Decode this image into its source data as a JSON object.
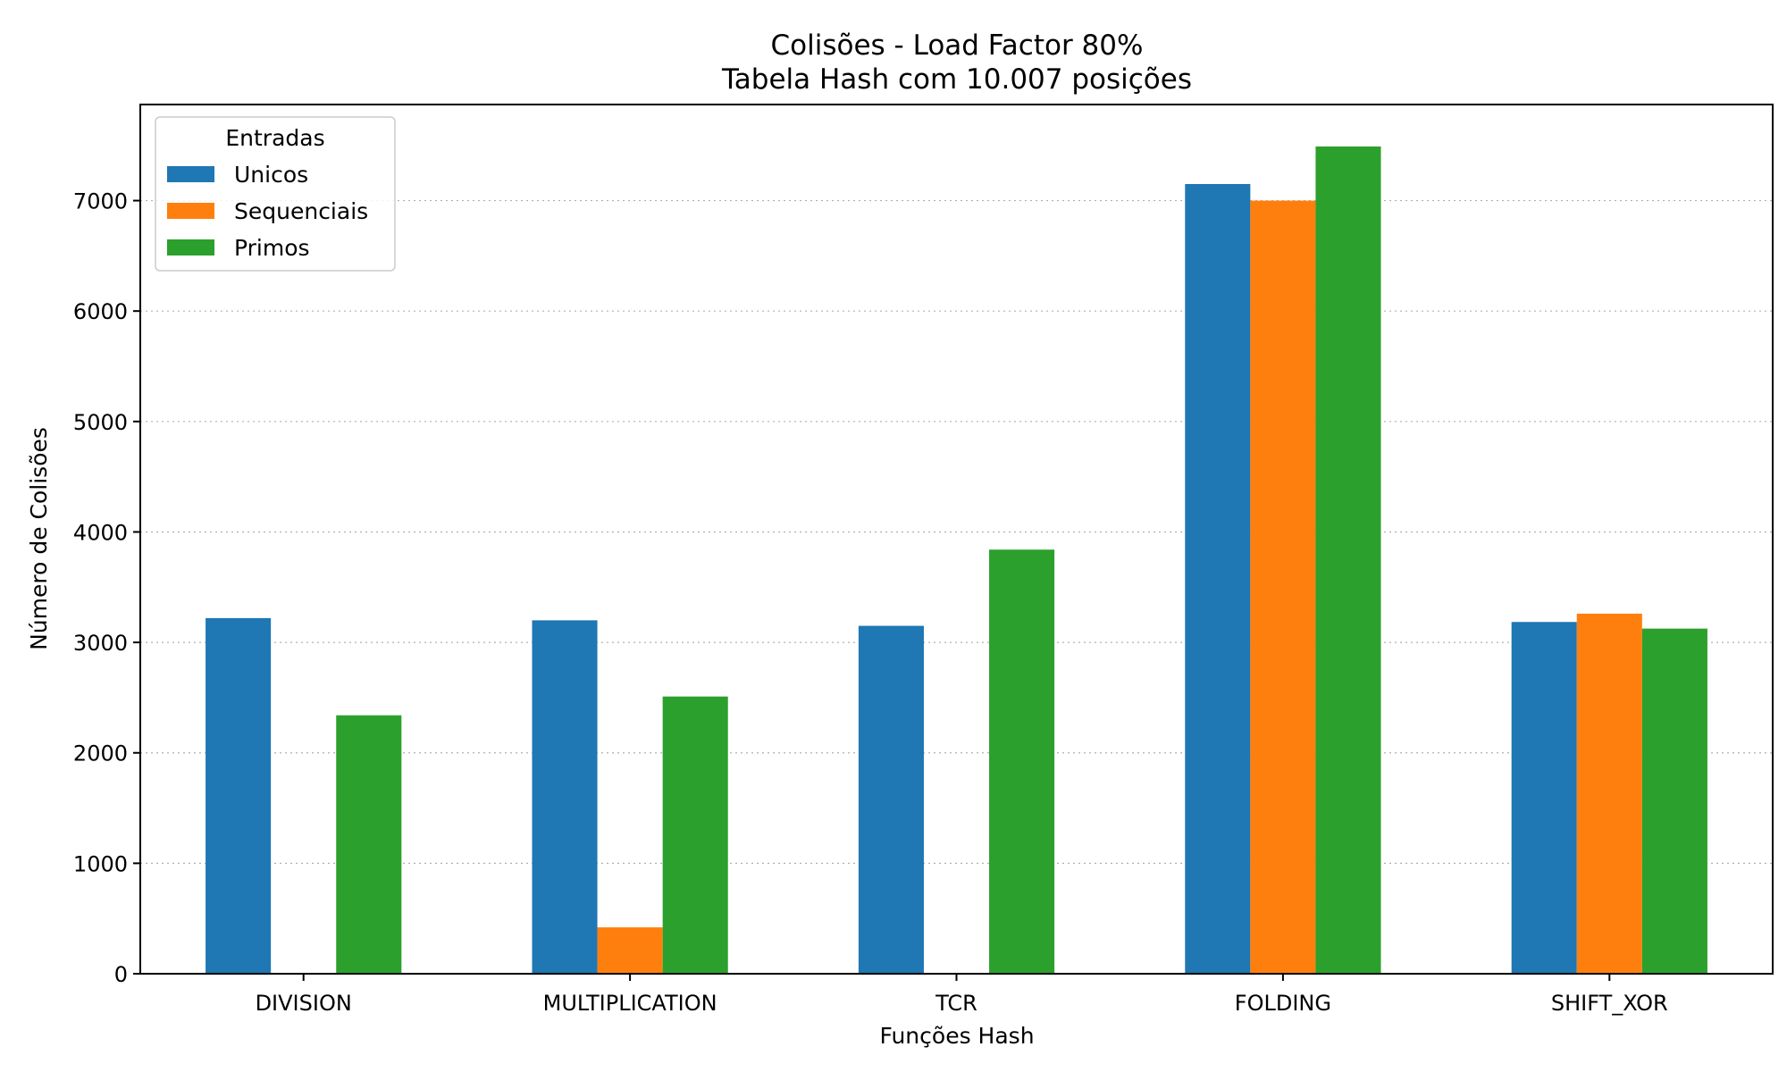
{
  "chart_data": {
    "type": "bar",
    "title": "Colisões - Load Factor 80%",
    "subtitle": "Tabela Hash com 10.007 posições",
    "xlabel": "Funções Hash",
    "ylabel": "Número de Colisões",
    "categories": [
      "DIVISION",
      "MULTIPLICATION",
      "TCR",
      "FOLDING",
      "SHIFT_XOR"
    ],
    "series": [
      {
        "name": "Unicos",
        "color": "#1f77b4",
        "values": [
          3220,
          3200,
          3150,
          7150,
          3185
        ]
      },
      {
        "name": "Sequenciais",
        "color": "#ff7f0e",
        "values": [
          0,
          420,
          0,
          7000,
          3260
        ]
      },
      {
        "name": "Primos",
        "color": "#2ca02c",
        "values": [
          2340,
          2510,
          3840,
          7490,
          3125
        ]
      }
    ],
    "ylim": [
      0,
      7870
    ],
    "yticks": [
      0,
      1000,
      2000,
      3000,
      4000,
      5000,
      6000,
      7000
    ],
    "grid": "y-dotted",
    "legend": {
      "title": "Entradas",
      "position": "top-left"
    }
  }
}
